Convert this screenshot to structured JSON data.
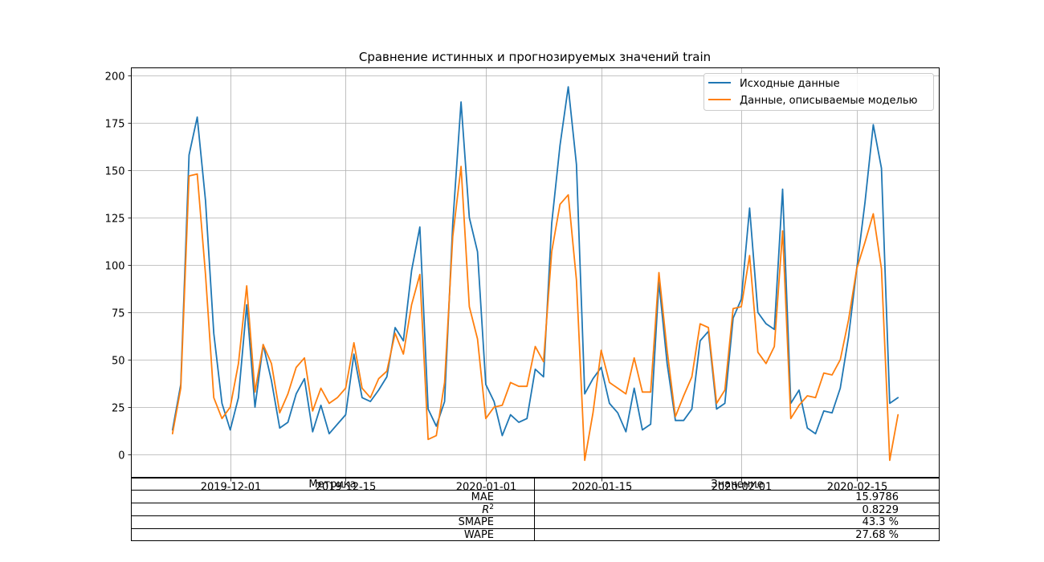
{
  "chart_data": {
    "type": "line",
    "title": "Сравнение истинных и прогнозируемых значений train",
    "xlabel": "",
    "ylabel": "",
    "x_start": "2019-11-24",
    "x_step_days": 1,
    "x_ticks": [
      {
        "date": "2019-12-01",
        "label": "2019-12-01"
      },
      {
        "date": "2019-12-15",
        "label": "2019-12-15"
      },
      {
        "date": "2020-01-01",
        "label": "2020-01-01"
      },
      {
        "date": "2020-01-15",
        "label": "2020-01-15"
      },
      {
        "date": "2020-02-01",
        "label": "2020-02-01"
      },
      {
        "date": "2020-02-15",
        "label": "2020-02-15"
      }
    ],
    "y_ticks": [
      0,
      25,
      50,
      75,
      100,
      125,
      150,
      175,
      200
    ],
    "xlim": [
      "2019-11-19",
      "2020-02-25"
    ],
    "ylim": [
      -12,
      204
    ],
    "grid": true,
    "legend_position": "top-right",
    "series": [
      {
        "name": "Исходные данные",
        "color": "#1f77b4",
        "values": [
          13,
          37,
          158,
          178,
          134,
          64,
          27,
          13,
          30,
          79,
          25,
          58,
          39,
          14,
          17,
          32,
          40,
          12,
          26,
          11,
          16,
          21,
          53,
          30,
          28,
          34,
          41,
          67,
          60,
          97,
          120,
          24,
          15,
          28,
          122,
          186,
          125,
          107,
          37,
          28,
          10,
          21,
          17,
          19,
          45,
          41,
          122,
          163,
          194,
          153,
          32,
          40,
          46,
          27,
          22,
          12,
          35,
          13,
          16,
          91,
          48,
          18,
          18,
          24,
          60,
          65,
          24,
          27,
          72,
          82,
          130,
          75,
          69,
          66,
          140,
          27,
          34,
          14,
          11,
          23,
          22,
          35,
          62,
          98,
          133,
          174,
          151,
          27,
          30
        ]
      },
      {
        "name": "Данные, описываемые моделью",
        "color": "#ff7f0e",
        "values": [
          11,
          35,
          147,
          148,
          95,
          30,
          19,
          25,
          48,
          89,
          33,
          58,
          48,
          22,
          32,
          46,
          51,
          23,
          35,
          27,
          30,
          35,
          59,
          35,
          30,
          40,
          44,
          64,
          53,
          79,
          95,
          8,
          10,
          38,
          115,
          152,
          78,
          61,
          19,
          25,
          26,
          38,
          36,
          36,
          57,
          49,
          107,
          132,
          137,
          92,
          -3,
          22,
          55,
          38,
          35,
          32,
          51,
          33,
          33,
          96,
          55,
          20,
          31,
          41,
          69,
          67,
          27,
          34,
          77,
          78,
          105,
          54,
          48,
          57,
          118,
          19,
          26,
          31,
          30,
          43,
          42,
          50,
          71,
          98,
          112,
          127,
          98,
          -3,
          21
        ]
      }
    ]
  },
  "table": {
    "headers": [
      "Метрика",
      "Значение"
    ],
    "rows": [
      {
        "metric": "MAE",
        "value": "15.9786"
      },
      {
        "metric": "R^2",
        "value": "0.8229"
      },
      {
        "metric": "SMAPE",
        "value": "43.3 %"
      },
      {
        "metric": "WAPE",
        "value": "27.68 %"
      }
    ]
  }
}
